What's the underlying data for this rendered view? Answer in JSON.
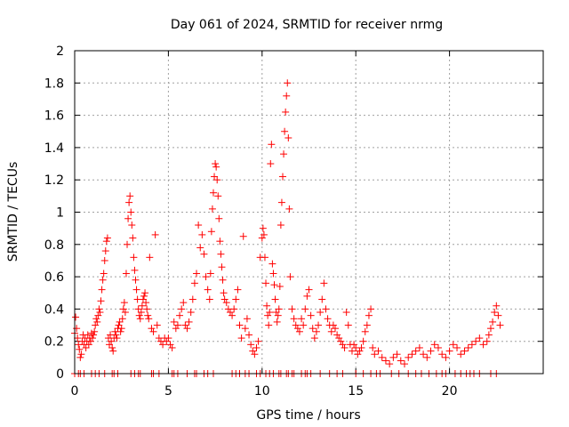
{
  "chart_data": {
    "type": "scatter",
    "title": "Day 061 of 2024, SRMTID for receiver nrmg",
    "xlabel": "GPS time / hours",
    "ylabel": "SRMTID / TECUs",
    "xlim": [
      0,
      25
    ],
    "ylim": [
      0,
      2
    ],
    "xticks": [
      0,
      5,
      10,
      15,
      20
    ],
    "xtick_labels": [
      "0",
      "5",
      "10",
      "15",
      "20"
    ],
    "yticks": [
      0,
      0.2,
      0.4,
      0.6,
      0.8,
      1,
      1.2,
      1.4,
      1.6,
      1.8,
      2
    ],
    "ytick_labels": [
      "0",
      "0.2",
      "0.4",
      "0.6",
      "0.8",
      "1",
      "1.2",
      "1.4",
      "1.6",
      "1.8",
      "2"
    ],
    "grid": true,
    "marker": "+",
    "series": [
      {
        "name": "SRMTID",
        "color": "#ff0000",
        "x": [
          0.0,
          0.05,
          0.1,
          0.15,
          0.2,
          0.25,
          0.3,
          0.35,
          0.4,
          0.45,
          0.5,
          0.55,
          0.6,
          0.65,
          0.7,
          0.75,
          0.8,
          0.85,
          0.9,
          0.95,
          1.0,
          1.05,
          1.1,
          1.15,
          1.2,
          1.25,
          1.3,
          1.35,
          1.4,
          1.45,
          1.5,
          1.55,
          1.6,
          1.65,
          1.7,
          1.75,
          1.8,
          1.85,
          1.9,
          1.95,
          2.0,
          2.05,
          2.1,
          2.15,
          2.2,
          2.25,
          2.3,
          2.35,
          2.4,
          2.45,
          2.5,
          2.55,
          2.6,
          2.65,
          2.7,
          2.75,
          2.8,
          2.85,
          2.9,
          2.95,
          3.0,
          3.05,
          3.1,
          3.15,
          3.2,
          3.25,
          3.3,
          3.35,
          3.4,
          3.45,
          3.5,
          3.55,
          3.6,
          3.65,
          3.7,
          3.75,
          3.8,
          3.85,
          3.9,
          3.95,
          4.0,
          4.1,
          4.2,
          4.3,
          4.4,
          4.5,
          4.6,
          4.7,
          4.8,
          4.9,
          5.0,
          5.1,
          5.2,
          5.3,
          5.4,
          5.5,
          5.6,
          5.7,
          5.8,
          5.9,
          6.0,
          6.1,
          6.2,
          6.3,
          6.4,
          6.5,
          6.6,
          6.7,
          6.8,
          6.9,
          7.0,
          7.1,
          7.2,
          7.25,
          7.3,
          7.35,
          7.4,
          7.45,
          7.5,
          7.55,
          7.6,
          7.65,
          7.7,
          7.75,
          7.8,
          7.85,
          7.9,
          7.95,
          8.0,
          8.1,
          8.2,
          8.3,
          8.4,
          8.5,
          8.6,
          8.7,
          8.8,
          8.9,
          9.0,
          9.1,
          9.2,
          9.3,
          9.4,
          9.5,
          9.6,
          9.7,
          9.8,
          9.9,
          10.0,
          10.05,
          10.1,
          10.15,
          10.2,
          10.25,
          10.3,
          10.35,
          10.4,
          10.45,
          10.5,
          10.55,
          10.6,
          10.65,
          10.7,
          10.75,
          10.8,
          10.85,
          10.9,
          10.95,
          11.0,
          11.05,
          11.1,
          11.15,
          11.2,
          11.25,
          11.3,
          11.35,
          11.4,
          11.45,
          11.5,
          11.6,
          11.7,
          11.8,
          11.9,
          12.0,
          12.1,
          12.2,
          12.3,
          12.4,
          12.5,
          12.6,
          12.7,
          12.8,
          12.9,
          13.0,
          13.1,
          13.2,
          13.3,
          13.4,
          13.5,
          13.6,
          13.7,
          13.8,
          13.9,
          14.0,
          14.1,
          14.2,
          14.3,
          14.4,
          14.5,
          14.6,
          14.7,
          14.8,
          14.9,
          15.0,
          15.1,
          15.2,
          15.3,
          15.4,
          15.5,
          15.6,
          15.7,
          15.8,
          15.9,
          16.0,
          16.2,
          16.4,
          16.6,
          16.8,
          17.0,
          17.2,
          17.4,
          17.6,
          17.8,
          18.0,
          18.2,
          18.4,
          18.6,
          18.8,
          19.0,
          19.2,
          19.4,
          19.6,
          19.8,
          20.0,
          20.2,
          20.4,
          20.6,
          20.8,
          21.0,
          21.2,
          21.4,
          21.6,
          21.8,
          22.0,
          22.1,
          22.2,
          22.3,
          22.4,
          22.5,
          22.6,
          22.7
        ],
        "y": [
          0.25,
          0.35,
          0.28,
          0.22,
          0.18,
          0.15,
          0.1,
          0.12,
          0.2,
          0.24,
          0.18,
          0.22,
          0.16,
          0.2,
          0.24,
          0.18,
          0.22,
          0.2,
          0.25,
          0.22,
          0.24,
          0.26,
          0.3,
          0.34,
          0.32,
          0.36,
          0.4,
          0.38,
          0.45,
          0.52,
          0.58,
          0.62,
          0.7,
          0.76,
          0.82,
          0.84,
          0.22,
          0.18,
          0.24,
          0.2,
          0.16,
          0.14,
          0.22,
          0.26,
          0.24,
          0.22,
          0.28,
          0.3,
          0.32,
          0.26,
          0.28,
          0.34,
          0.4,
          0.44,
          0.38,
          0.62,
          0.8,
          0.96,
          1.06,
          1.1,
          1.0,
          0.92,
          0.84,
          0.72,
          0.64,
          0.58,
          0.52,
          0.46,
          0.4,
          0.36,
          0.34,
          0.38,
          0.42,
          0.46,
          0.48,
          0.5,
          0.44,
          0.4,
          0.36,
          0.34,
          0.72,
          0.28,
          0.26,
          0.86,
          0.3,
          0.22,
          0.2,
          0.18,
          0.22,
          0.2,
          0.22,
          0.18,
          0.16,
          0.32,
          0.28,
          0.3,
          0.36,
          0.4,
          0.44,
          0.3,
          0.28,
          0.32,
          0.38,
          0.46,
          0.56,
          0.62,
          0.92,
          0.78,
          0.86,
          0.74,
          0.6,
          0.52,
          0.46,
          0.62,
          0.88,
          1.02,
          1.12,
          1.22,
          1.3,
          1.28,
          1.2,
          1.1,
          0.96,
          0.82,
          0.74,
          0.66,
          0.58,
          0.5,
          0.46,
          0.44,
          0.4,
          0.38,
          0.36,
          0.4,
          0.46,
          0.52,
          0.3,
          0.22,
          0.85,
          0.28,
          0.34,
          0.24,
          0.18,
          0.14,
          0.12,
          0.16,
          0.2,
          0.72,
          0.84,
          0.9,
          0.86,
          0.72,
          0.56,
          0.42,
          0.36,
          0.3,
          0.38,
          1.3,
          1.42,
          0.68,
          0.62,
          0.55,
          0.46,
          0.38,
          0.32,
          0.36,
          0.4,
          0.54,
          0.92,
          1.06,
          1.22,
          1.36,
          1.5,
          1.62,
          1.72,
          1.8,
          1.46,
          1.02,
          0.6,
          0.4,
          0.34,
          0.3,
          0.28,
          0.26,
          0.34,
          0.3,
          0.4,
          0.48,
          0.52,
          0.36,
          0.28,
          0.22,
          0.26,
          0.3,
          0.38,
          0.46,
          0.56,
          0.4,
          0.34,
          0.3,
          0.26,
          0.3,
          0.28,
          0.24,
          0.22,
          0.2,
          0.18,
          0.16,
          0.38,
          0.3,
          0.18,
          0.14,
          0.18,
          0.16,
          0.12,
          0.14,
          0.16,
          0.2,
          0.26,
          0.3,
          0.36,
          0.4,
          0.16,
          0.12,
          0.14,
          0.1,
          0.08,
          0.06,
          0.1,
          0.12,
          0.08,
          0.06,
          0.1,
          0.12,
          0.14,
          0.16,
          0.12,
          0.1,
          0.14,
          0.18,
          0.16,
          0.12,
          0.1,
          0.14,
          0.18,
          0.16,
          0.12,
          0.14,
          0.16,
          0.18,
          0.2,
          0.22,
          0.18,
          0.2,
          0.24,
          0.28,
          0.32,
          0.38,
          0.42,
          0.36,
          0.3
        ]
      }
    ],
    "zero_cluster_x": [
      0.0,
      0.2,
      0.3,
      0.5,
      0.9,
      1.1,
      1.3,
      1.6,
      2.0,
      2.1,
      2.3,
      3.0,
      3.2,
      3.4,
      3.5,
      4.1,
      4.2,
      4.5,
      5.2,
      5.3,
      5.5,
      6.0,
      6.4,
      6.5,
      6.9,
      7.1,
      7.4,
      8.4,
      8.6,
      8.8,
      9.1,
      9.3,
      9.7,
      9.9,
      10.2,
      10.4,
      10.6,
      10.9,
      11.0,
      11.3,
      11.4,
      11.6,
      11.7,
      12.1,
      12.3,
      12.4,
      12.6,
      13.1,
      13.6,
      14.0,
      14.3,
      15.0,
      15.4,
      15.8,
      16.1,
      16.3,
      16.9,
      17.3,
      17.8,
      18.2,
      18.5,
      18.9,
      19.3,
      19.6,
      19.8,
      20.3,
      20.6,
      20.9,
      21.1,
      21.3,
      21.6,
      22.2,
      22.5
    ]
  }
}
